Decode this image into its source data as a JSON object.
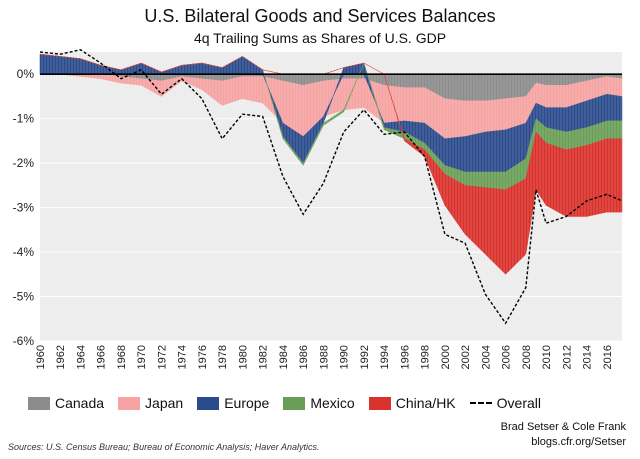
{
  "chart_data": {
    "type": "area",
    "title": "U.S. Bilateral Goods and Services Balances",
    "subtitle": "4q Trailing Sums as Shares of U.S. GDP",
    "xlabel": "",
    "ylabel": "",
    "xlim": [
      1960,
      2017.5
    ],
    "ylim": [
      -6,
      0.5
    ],
    "y_ticks": [
      0,
      -1,
      -2,
      -3,
      -4,
      -5,
      -6
    ],
    "y_tick_labels": [
      "0%",
      "-1%",
      "-2%",
      "-3%",
      "-4%",
      "-5%",
      "-6%"
    ],
    "x_tick_labels": [
      "1960",
      "1962",
      "1964",
      "1966",
      "1968",
      "1970",
      "1972",
      "1974",
      "1976",
      "1978",
      "1980",
      "1982",
      "1984",
      "1986",
      "1988",
      "1990",
      "1992",
      "1994",
      "1996",
      "1998",
      "2000",
      "2002",
      "2004",
      "2006",
      "2008",
      "2010",
      "2012",
      "2014",
      "2016"
    ],
    "x": [
      1960,
      1962,
      1964,
      1966,
      1968,
      1970,
      1972,
      1974,
      1976,
      1978,
      1980,
      1982,
      1984,
      1986,
      1988,
      1990,
      1992,
      1994,
      1996,
      1998,
      2000,
      2002,
      2004,
      2006,
      2008,
      2009,
      2010,
      2012,
      2014,
      2016,
      2017.5
    ],
    "series": [
      {
        "name": "Canada",
        "color": "#8c8c8c",
        "values": [
          0.0,
          0.0,
          0.0,
          0.0,
          -0.05,
          -0.1,
          -0.15,
          -0.05,
          -0.1,
          -0.15,
          -0.05,
          -0.05,
          -0.15,
          -0.25,
          -0.15,
          -0.1,
          -0.1,
          -0.25,
          -0.3,
          -0.3,
          -0.55,
          -0.6,
          -0.6,
          -0.55,
          -0.5,
          -0.2,
          -0.25,
          -0.25,
          -0.15,
          -0.05,
          -0.1
        ]
      },
      {
        "name": "Japan",
        "color": "#f6a3a3",
        "values": [
          0.0,
          0.0,
          -0.05,
          -0.1,
          -0.15,
          -0.15,
          -0.35,
          -0.1,
          -0.25,
          -0.55,
          -0.5,
          -0.6,
          -0.95,
          -1.15,
          -0.8,
          -0.7,
          -0.65,
          -0.85,
          -0.75,
          -0.8,
          -0.9,
          -0.8,
          -0.7,
          -0.7,
          -0.6,
          -0.45,
          -0.5,
          -0.5,
          -0.45,
          -0.4,
          -0.4
        ]
      },
      {
        "name": "Europe",
        "color": "#2b4c8c",
        "values": [
          0.45,
          0.4,
          0.35,
          0.2,
          0.1,
          0.25,
          0.05,
          0.2,
          0.25,
          0.15,
          0.4,
          0.1,
          -0.3,
          -0.6,
          -0.15,
          0.15,
          0.25,
          -0.1,
          -0.25,
          -0.45,
          -0.6,
          -0.8,
          -0.9,
          -0.95,
          -0.8,
          -0.35,
          -0.45,
          -0.55,
          -0.6,
          -0.6,
          -0.55
        ]
      },
      {
        "name": "Mexico",
        "color": "#6a9e56",
        "values": [
          0.0,
          0.0,
          0.0,
          0.0,
          0.0,
          0.0,
          0.0,
          0.0,
          0.0,
          0.0,
          0.0,
          0.0,
          -0.05,
          -0.05,
          -0.05,
          -0.05,
          0.0,
          -0.05,
          -0.15,
          -0.15,
          -0.2,
          -0.3,
          -0.35,
          -0.4,
          -0.45,
          -0.3,
          -0.35,
          -0.4,
          -0.4,
          -0.4,
          -0.4
        ]
      },
      {
        "name": "China/HK",
        "color": "#d9312b",
        "values": [
          0.0,
          0.0,
          0.0,
          0.0,
          0.0,
          0.0,
          0.0,
          0.0,
          0.0,
          0.0,
          0.0,
          0.0,
          0.0,
          0.0,
          0.0,
          0.0,
          0.0,
          0.0,
          -0.05,
          -0.15,
          -0.7,
          -1.1,
          -1.5,
          -1.9,
          -1.7,
          -1.3,
          -1.4,
          -1.5,
          -1.6,
          -1.65,
          -1.65
        ]
      }
    ],
    "overall": {
      "name": "Overall",
      "color": "#000000",
      "values": [
        0.5,
        0.45,
        0.55,
        0.25,
        -0.1,
        0.1,
        -0.45,
        -0.1,
        -0.55,
        -1.45,
        -0.9,
        -0.95,
        -2.3,
        -3.15,
        -2.45,
        -1.3,
        -0.8,
        -1.35,
        -1.3,
        -1.85,
        -3.6,
        -3.8,
        -4.95,
        -5.6,
        -4.8,
        -2.6,
        -3.35,
        -3.2,
        -2.85,
        -2.7,
        -2.85
      ]
    },
    "legend": {
      "position": "bottom",
      "items": [
        "Canada",
        "Japan",
        "Europe",
        "Mexico",
        "China/HK",
        "Overall"
      ]
    },
    "credit": [
      "Brad Setser & Cole Frank",
      "blogs.cfr.org/Setser"
    ],
    "sources": "Sources: U.S. Census Bureau; Bureau of Economic Analysis; Haver Analytics."
  },
  "colors": {
    "plot_background": "#ececec",
    "grid": "#ffffff",
    "zero_line": "#000000"
  }
}
